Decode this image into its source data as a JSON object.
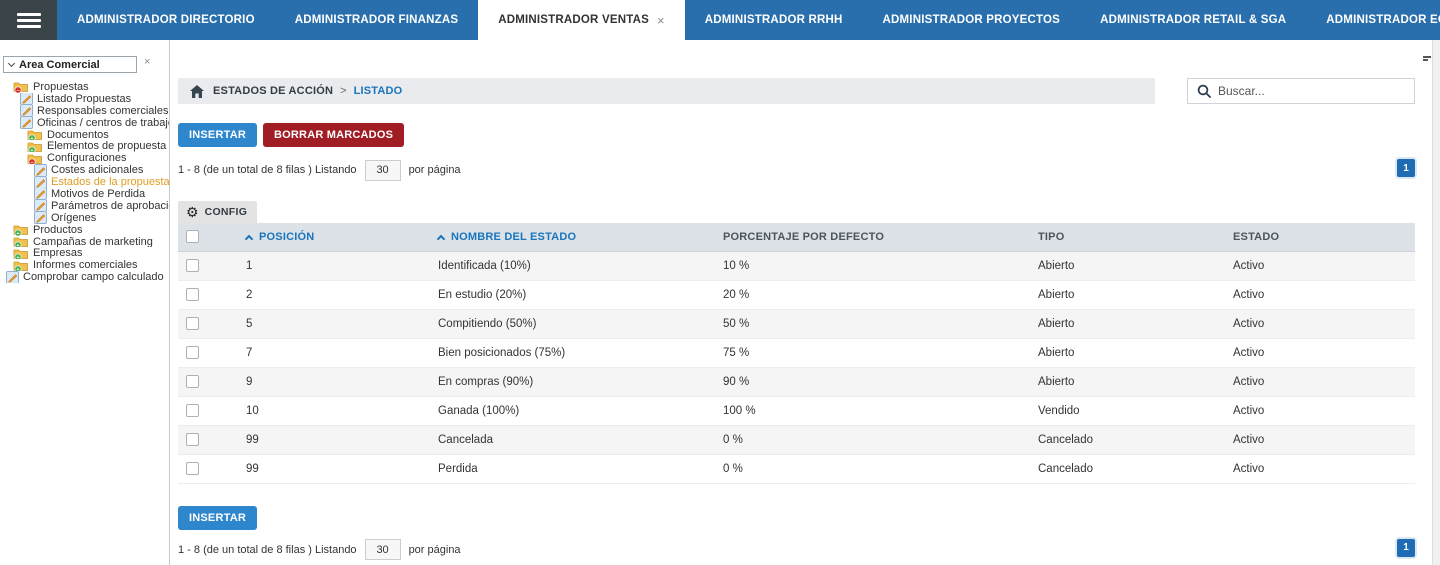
{
  "nav": {
    "tabs": [
      {
        "label": "ADMINISTRADOR DIRECTORIO",
        "active": false
      },
      {
        "label": "ADMINISTRADOR FINANZAS",
        "active": false
      },
      {
        "label": "ADMINISTRADOR VENTAS",
        "active": true,
        "close": "×"
      },
      {
        "label": "ADMINISTRADOR RRHH",
        "active": false
      },
      {
        "label": "ADMINISTRADOR PROYECTOS",
        "active": false
      },
      {
        "label": "ADMINISTRADOR RETAIL & SGA",
        "active": false
      },
      {
        "label": "ADMINISTRADOR ECM",
        "active": false
      }
    ]
  },
  "sidebar": {
    "header": "Area Comercial",
    "close_glyph": "×",
    "items": [
      {
        "label": "Propuestas",
        "icon": "folder-red-icon",
        "level": 1,
        "selected": false
      },
      {
        "label": "Listado Propuestas",
        "icon": "sheet-pencil-icon",
        "level": 2,
        "selected": false
      },
      {
        "label": "Responsables comerciales",
        "icon": "sheet-pencil-icon",
        "level": 2,
        "selected": false
      },
      {
        "label": "Oficinas / centros de trabajo",
        "icon": "sheet-pencil-icon",
        "level": 2,
        "selected": false
      },
      {
        "label": "Documentos",
        "icon": "folder-green-icon",
        "level": 3,
        "selected": false
      },
      {
        "label": "Elementos de propuesta",
        "icon": "folder-green-icon",
        "level": 3,
        "selected": false
      },
      {
        "label": "Configuraciones",
        "icon": "folder-red-icon",
        "level": 3,
        "selected": false
      },
      {
        "label": "Costes adicionales",
        "icon": "sheet-pencil-icon",
        "level": 4,
        "selected": false
      },
      {
        "label": "Estados de la propuesta",
        "icon": "sheet-pencil-icon",
        "level": 4,
        "selected": true
      },
      {
        "label": "Motivos de Perdida",
        "icon": "sheet-pencil-icon",
        "level": 4,
        "selected": false
      },
      {
        "label": "Parámetros de aprobación",
        "icon": "sheet-pencil-icon",
        "level": 4,
        "selected": false
      },
      {
        "label": "Orígenes",
        "icon": "sheet-pencil-icon",
        "level": 4,
        "selected": false
      },
      {
        "label": "Productos",
        "icon": "folder-green-icon",
        "level": 1,
        "selected": false
      },
      {
        "label": "Campañas de marketing",
        "icon": "folder-green-icon",
        "level": 1,
        "selected": false
      },
      {
        "label": "Empresas",
        "icon": "folder-green-icon",
        "level": 1,
        "selected": false
      },
      {
        "label": "Informes comerciales",
        "icon": "folder-green-icon",
        "level": 1,
        "selected": false
      },
      {
        "label": "Comprobar campo calculado",
        "icon": "sheet-pencil-icon",
        "level": 0,
        "selected": false
      }
    ]
  },
  "breadcrumb": {
    "root": "ESTADOS DE ACCIÓN",
    "separator": ">",
    "current": "LISTADO"
  },
  "search": {
    "placeholder": "Buscar..."
  },
  "toolbar": {
    "insert_label": "INSERTAR",
    "delete_label": "BORRAR MARCADOS",
    "config_label": "CONFIG"
  },
  "pagination": {
    "summary": "1 - 8 (de un total de 8 filas ) Listando",
    "page_size": "30",
    "suffix": "por página",
    "page": "1"
  },
  "table": {
    "columns": [
      {
        "label": "POSICIÓN",
        "sorted": true
      },
      {
        "label": "NOMBRE DEL ESTADO",
        "sorted": true
      },
      {
        "label": "PORCENTAJE POR DEFECTO",
        "sorted": false
      },
      {
        "label": "TIPO",
        "sorted": false
      },
      {
        "label": "ESTADO",
        "sorted": false
      }
    ],
    "rows": [
      [
        "1",
        "Identificada (10%)",
        "10 %",
        "Abierto",
        "Activo"
      ],
      [
        "2",
        "En estudio (20%)",
        "20 %",
        "Abierto",
        "Activo"
      ],
      [
        "5",
        "Compitiendo (50%)",
        "50 %",
        "Abierto",
        "Activo"
      ],
      [
        "7",
        "Bien posicionados (75%)",
        "75 %",
        "Abierto",
        "Activo"
      ],
      [
        "9",
        "En compras (90%)",
        "90 %",
        "Abierto",
        "Activo"
      ],
      [
        "10",
        "Ganada (100%)",
        "100 %",
        "Vendido",
        "Activo"
      ],
      [
        "99",
        "Cancelada",
        "0 %",
        "Cancelado",
        "Activo"
      ],
      [
        "99",
        "Perdida",
        "0 %",
        "Cancelado",
        "Activo"
      ]
    ]
  },
  "colors": {
    "nav_blue": "#2a6fad",
    "nav_dark": "#3b4449",
    "accent_blue": "#2e86cc",
    "danger_red": "#a01d24",
    "link_blue": "#1a75bc",
    "page_button_blue": "#1f6cb5",
    "selected_tree_item": "#df9c21",
    "table_header_bg": "#dde2e8",
    "row_alt_bg": "#f5f5f5"
  }
}
